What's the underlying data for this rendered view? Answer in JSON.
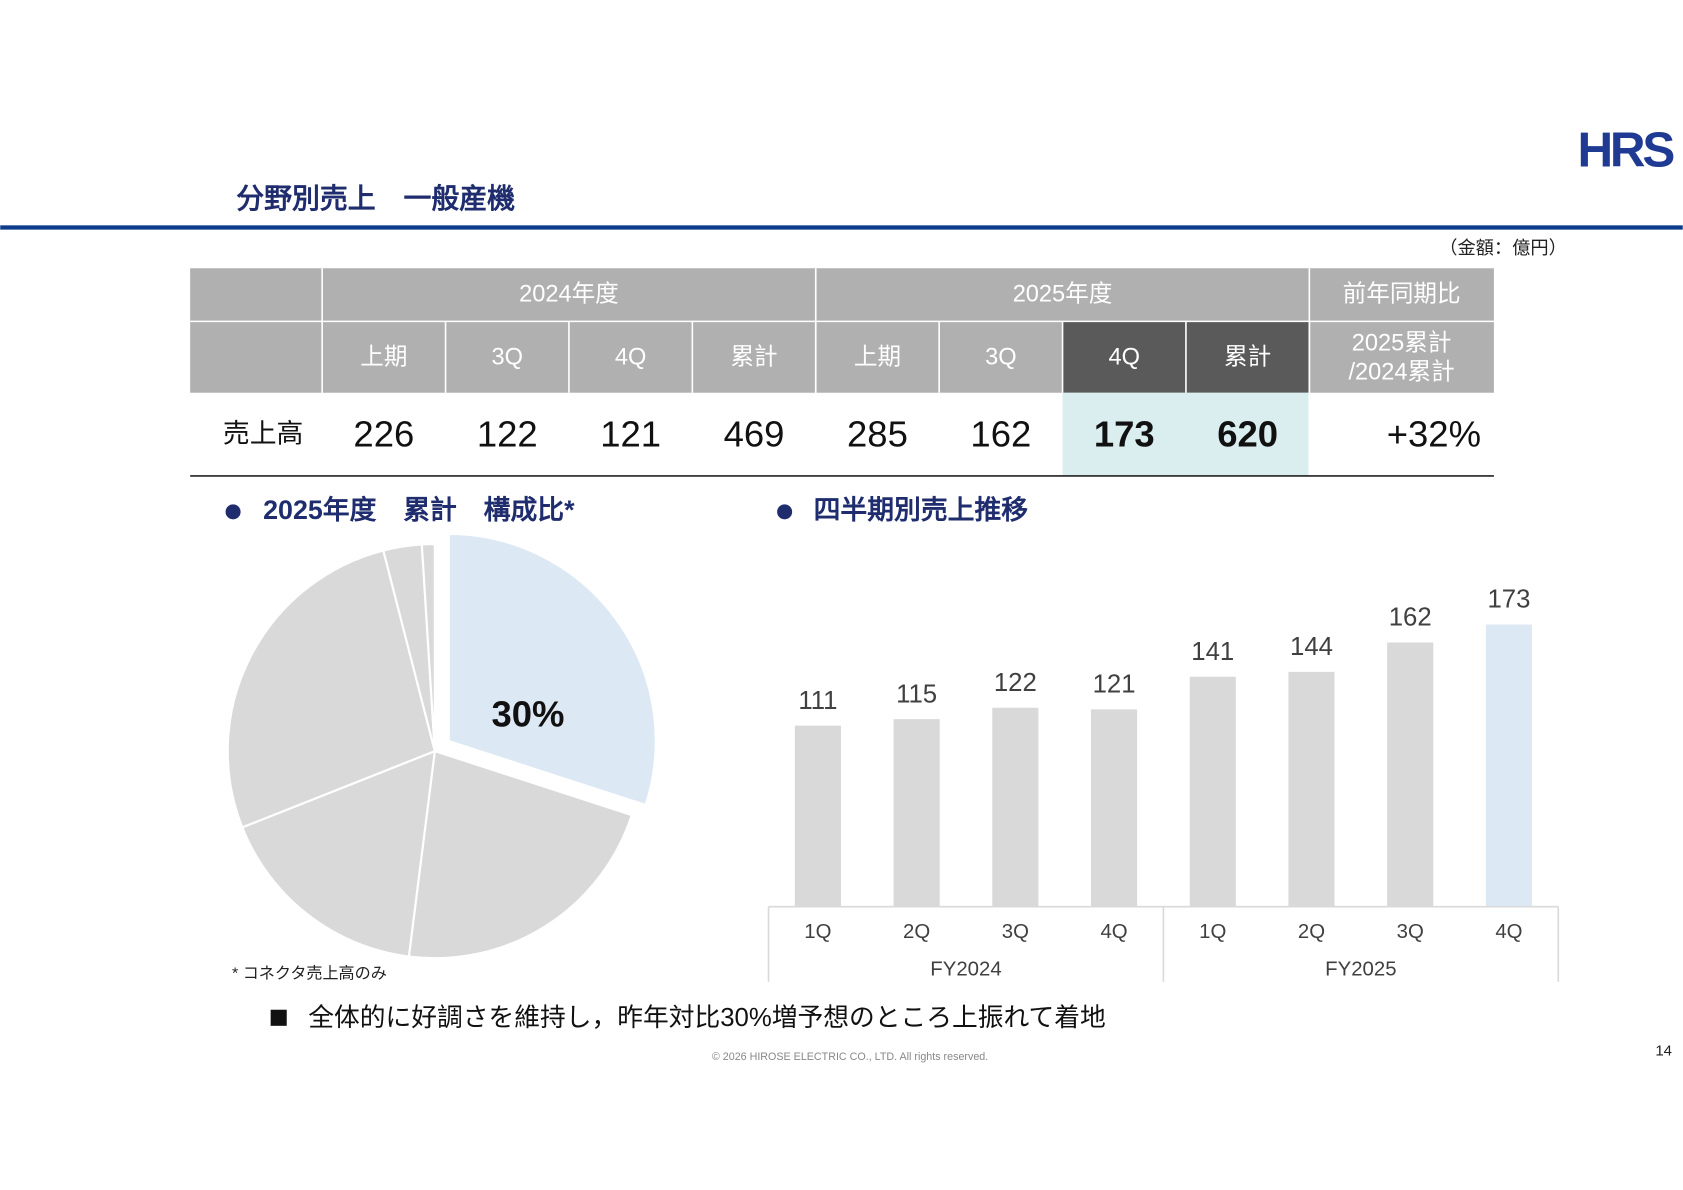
{
  "header": {
    "title": "分野別売上　一般産機",
    "logo": "HRS",
    "unit": "（金額：億円）"
  },
  "table": {
    "header_row1": [
      "2024年度",
      "2025年度",
      "前年同期比"
    ],
    "header_row2": [
      "上期",
      "3Q",
      "4Q",
      "累計",
      "上期",
      "3Q",
      "4Q",
      "累計"
    ],
    "ratio_header": [
      "2025累計",
      "/2024累計"
    ],
    "row_label": "売上高",
    "values": [
      226,
      122,
      121,
      469,
      285,
      162,
      173,
      620
    ],
    "ratio": "+32%"
  },
  "chart_data": [
    {
      "type": "pie",
      "title": "2025年度　累計　構成比*",
      "values": [
        30,
        22,
        17,
        27,
        3,
        1
      ],
      "value_labels": [
        "30%",
        null,
        null,
        null,
        null,
        null
      ],
      "colors": [
        "#dde8f5",
        "#d9d9d9",
        "#d9d9d9",
        "#d9d9d9",
        "#d9d9d9",
        "#d9d9d9"
      ],
      "footnote": "* コネクタ売上高のみ"
    },
    {
      "type": "bar",
      "title": "四半期別売上推移",
      "categories": [
        "1Q",
        "2Q",
        "3Q",
        "4Q",
        "1Q",
        "2Q",
        "3Q",
        "4Q"
      ],
      "category_groups": [
        "FY2024",
        "FY2025"
      ],
      "values": [
        111,
        115,
        122,
        121,
        141,
        144,
        162,
        173
      ],
      "colors": [
        "#d9d9d9",
        "#d9d9d9",
        "#d9d9d9",
        "#d9d9d9",
        "#d9d9d9",
        "#d9d9d9",
        "#d9d9d9",
        "#dde8f5"
      ]
    }
  ],
  "note": "全体的に好調さを維持し，昨年対比30%増予想のところ上振れて着地",
  "footer": {
    "copyright": "© 2026 HIROSE ELECTRIC CO., LTD. All rights reserved.",
    "page": "14"
  }
}
